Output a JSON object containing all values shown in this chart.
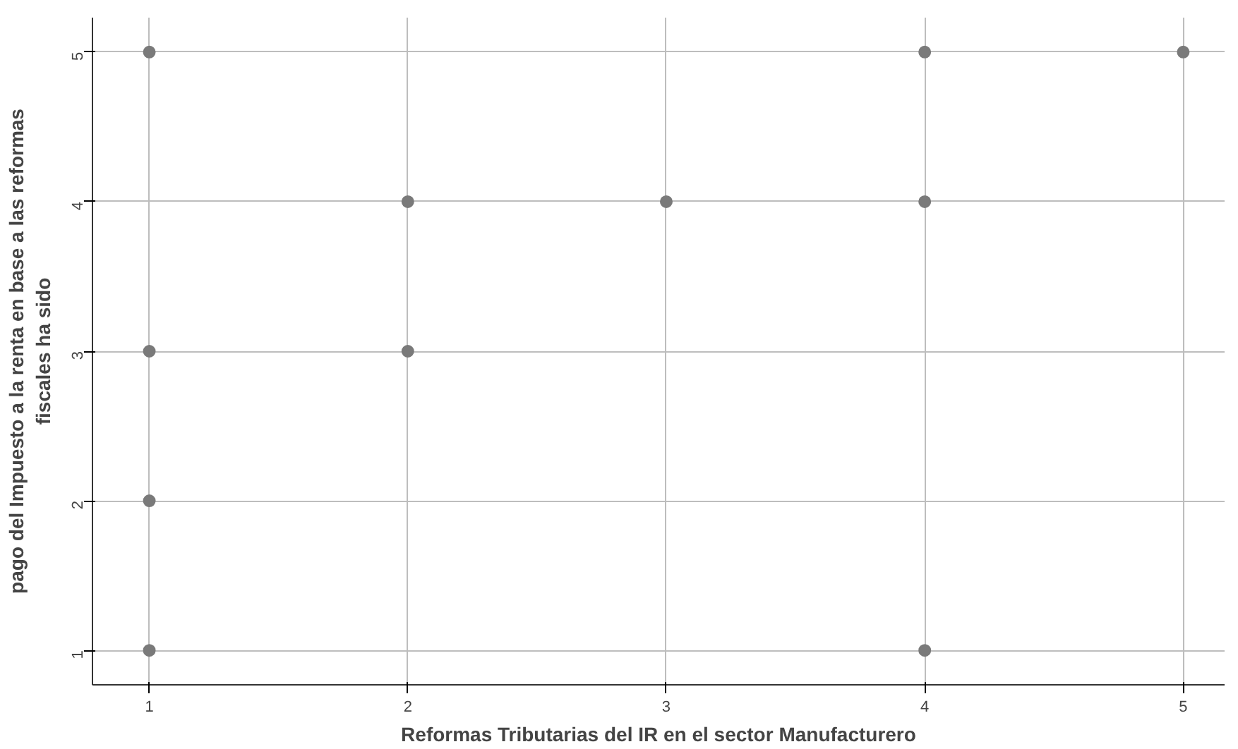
{
  "chart_data": {
    "type": "scatter",
    "xlabel": "Reformas Tributarias del IR en el sector Manufacturero",
    "ylabel": "pago del Impuesto a la renta en base a las reformas\nfiscales ha sido",
    "series": [
      {
        "color": "#7a7a7a",
        "x": [
          1,
          1,
          1,
          1,
          2,
          2,
          3,
          4,
          4,
          4,
          5
        ],
        "values": [
          5,
          3,
          2,
          1,
          4,
          3,
          4,
          5,
          4,
          1,
          5
        ]
      }
    ],
    "xlim": [
      0.78,
      5.16
    ],
    "ylim": [
      0.77,
      5.23
    ],
    "xticks": [
      1,
      2,
      3,
      4,
      5
    ],
    "yticks": [
      1,
      2,
      3,
      4,
      5
    ],
    "grid": true,
    "marker": "circle"
  }
}
